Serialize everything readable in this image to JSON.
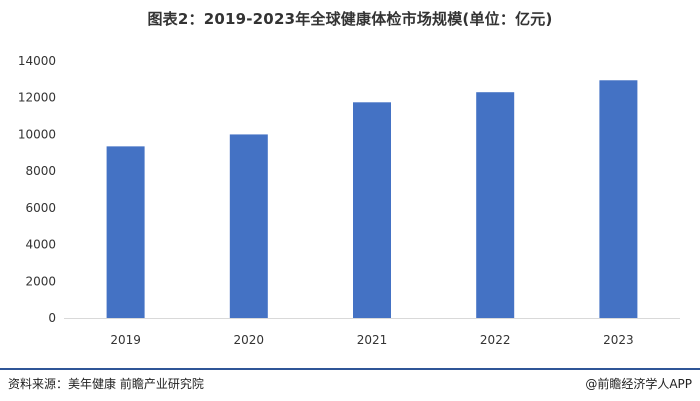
{
  "title": "图表2：2019-2023年全球健康体检市场规模(单位：亿元)",
  "footer": {
    "source": "资料来源：美年健康 前瞻产业研究院",
    "brand": "@前瞻经济学人APP"
  },
  "colors": {
    "bar": "#4472c4",
    "axis": "#d9d9d9",
    "footer_rule": "#2f5597"
  },
  "chart_data": {
    "type": "bar",
    "title": "图表2：2019-2023年全球健康体检市场规模(单位：亿元)",
    "categories": [
      "2019",
      "2020",
      "2021",
      "2022",
      "2023"
    ],
    "values": [
      9350,
      10000,
      11750,
      12300,
      12950
    ],
    "xlabel": "",
    "ylabel": "",
    "ylim": [
      0,
      14000
    ],
    "yticks": [
      "0",
      "2000",
      "4000",
      "6000",
      "8000",
      "10000",
      "12000",
      "14000"
    ],
    "grid": false,
    "legend": "none"
  }
}
